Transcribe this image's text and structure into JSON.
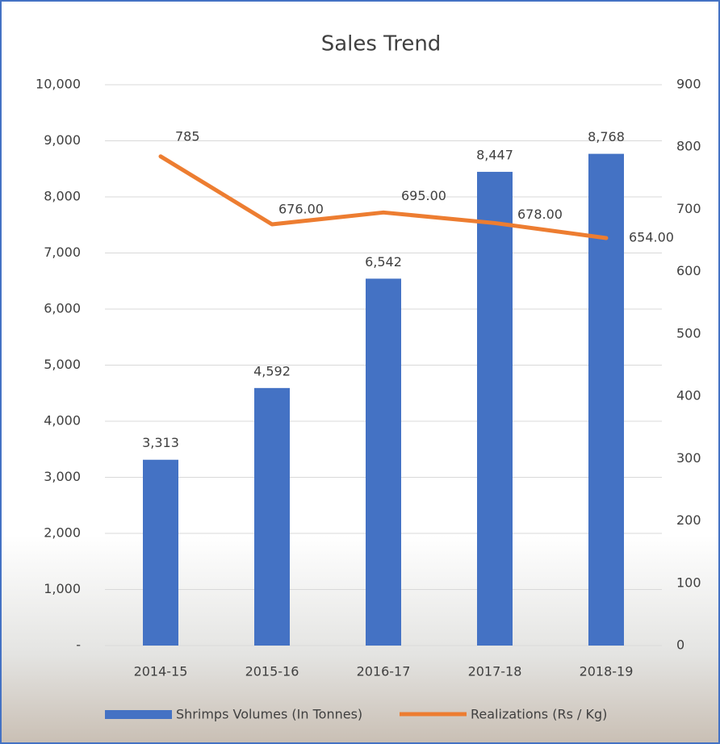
{
  "chart_data": {
    "type": "bar",
    "title": "Sales Trend",
    "categories": [
      "2014-15",
      "2015-16",
      "2016-17",
      "2017-18",
      "2018-19"
    ],
    "series": [
      {
        "name": "Shrimps Volumes (In Tonnes)",
        "type": "bar",
        "color": "#4472c4",
        "values": [
          3313,
          4592,
          6542,
          8447,
          8768
        ],
        "value_labels": [
          "3,313",
          "4,592",
          "6,542",
          "8,447",
          "8,768"
        ]
      },
      {
        "name": "Realizations (Rs / Kg)",
        "type": "line",
        "axis": "y2",
        "color": "#ed7d31",
        "values": [
          785,
          676,
          695,
          678,
          654
        ],
        "value_labels": [
          "785",
          "676.00",
          "695.00",
          "678.00",
          "654.00"
        ]
      }
    ],
    "ylim": [
      0,
      10000
    ],
    "yticks": [
      {
        "value": 0,
        "label": "-"
      },
      {
        "value": 1000,
        "label": "1,000"
      },
      {
        "value": 2000,
        "label": "2,000"
      },
      {
        "value": 3000,
        "label": "3,000"
      },
      {
        "value": 4000,
        "label": "4,000"
      },
      {
        "value": 5000,
        "label": "5,000"
      },
      {
        "value": 6000,
        "label": "6,000"
      },
      {
        "value": 7000,
        "label": "7,000"
      },
      {
        "value": 8000,
        "label": "8,000"
      },
      {
        "value": 9000,
        "label": "9,000"
      },
      {
        "value": 10000,
        "label": "10,000"
      }
    ],
    "y2lim": [
      0,
      900
    ],
    "y2ticks": [
      0,
      100,
      200,
      300,
      400,
      500,
      600,
      700,
      800,
      900
    ],
    "grid": true,
    "legend": "bottom"
  }
}
